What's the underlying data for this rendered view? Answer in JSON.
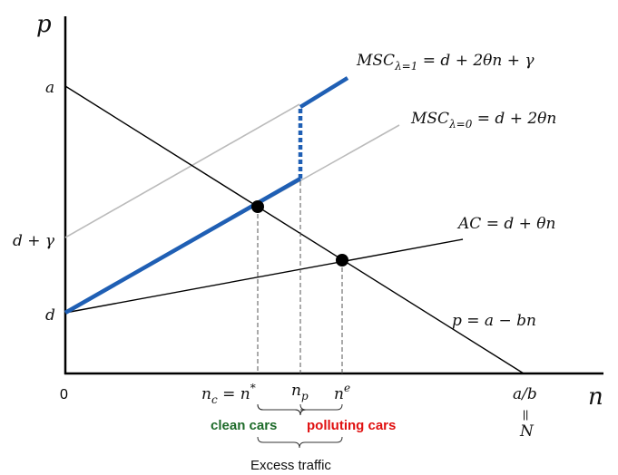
{
  "axes": {
    "y_label": "p",
    "x_label": "n",
    "origin": "0"
  },
  "y_labels": {
    "a": "a",
    "d_gamma": "d + γ",
    "d": "d"
  },
  "curves": {
    "msc1": {
      "main": "MSC",
      "sub": "λ=1",
      "rest": " = d + 2θn + γ"
    },
    "msc0": {
      "main": "MSC",
      "sub": "λ=0",
      "rest": " = d + 2θn"
    },
    "ac": "AC = d + θn",
    "demand": "p = a − bn"
  },
  "x_labels": {
    "nc": {
      "main": "n",
      "sub": "c",
      "rest": " = n",
      "sup": "*"
    },
    "np": {
      "main": "n",
      "sub": "p"
    },
    "ne": {
      "main": "n",
      "sup": "e"
    },
    "ab": "a/b",
    "equals": "||",
    "N": "N"
  },
  "annotations": {
    "clean": "clean cars",
    "polluting": "polluting cars",
    "excess": "Excess traffic"
  }
}
